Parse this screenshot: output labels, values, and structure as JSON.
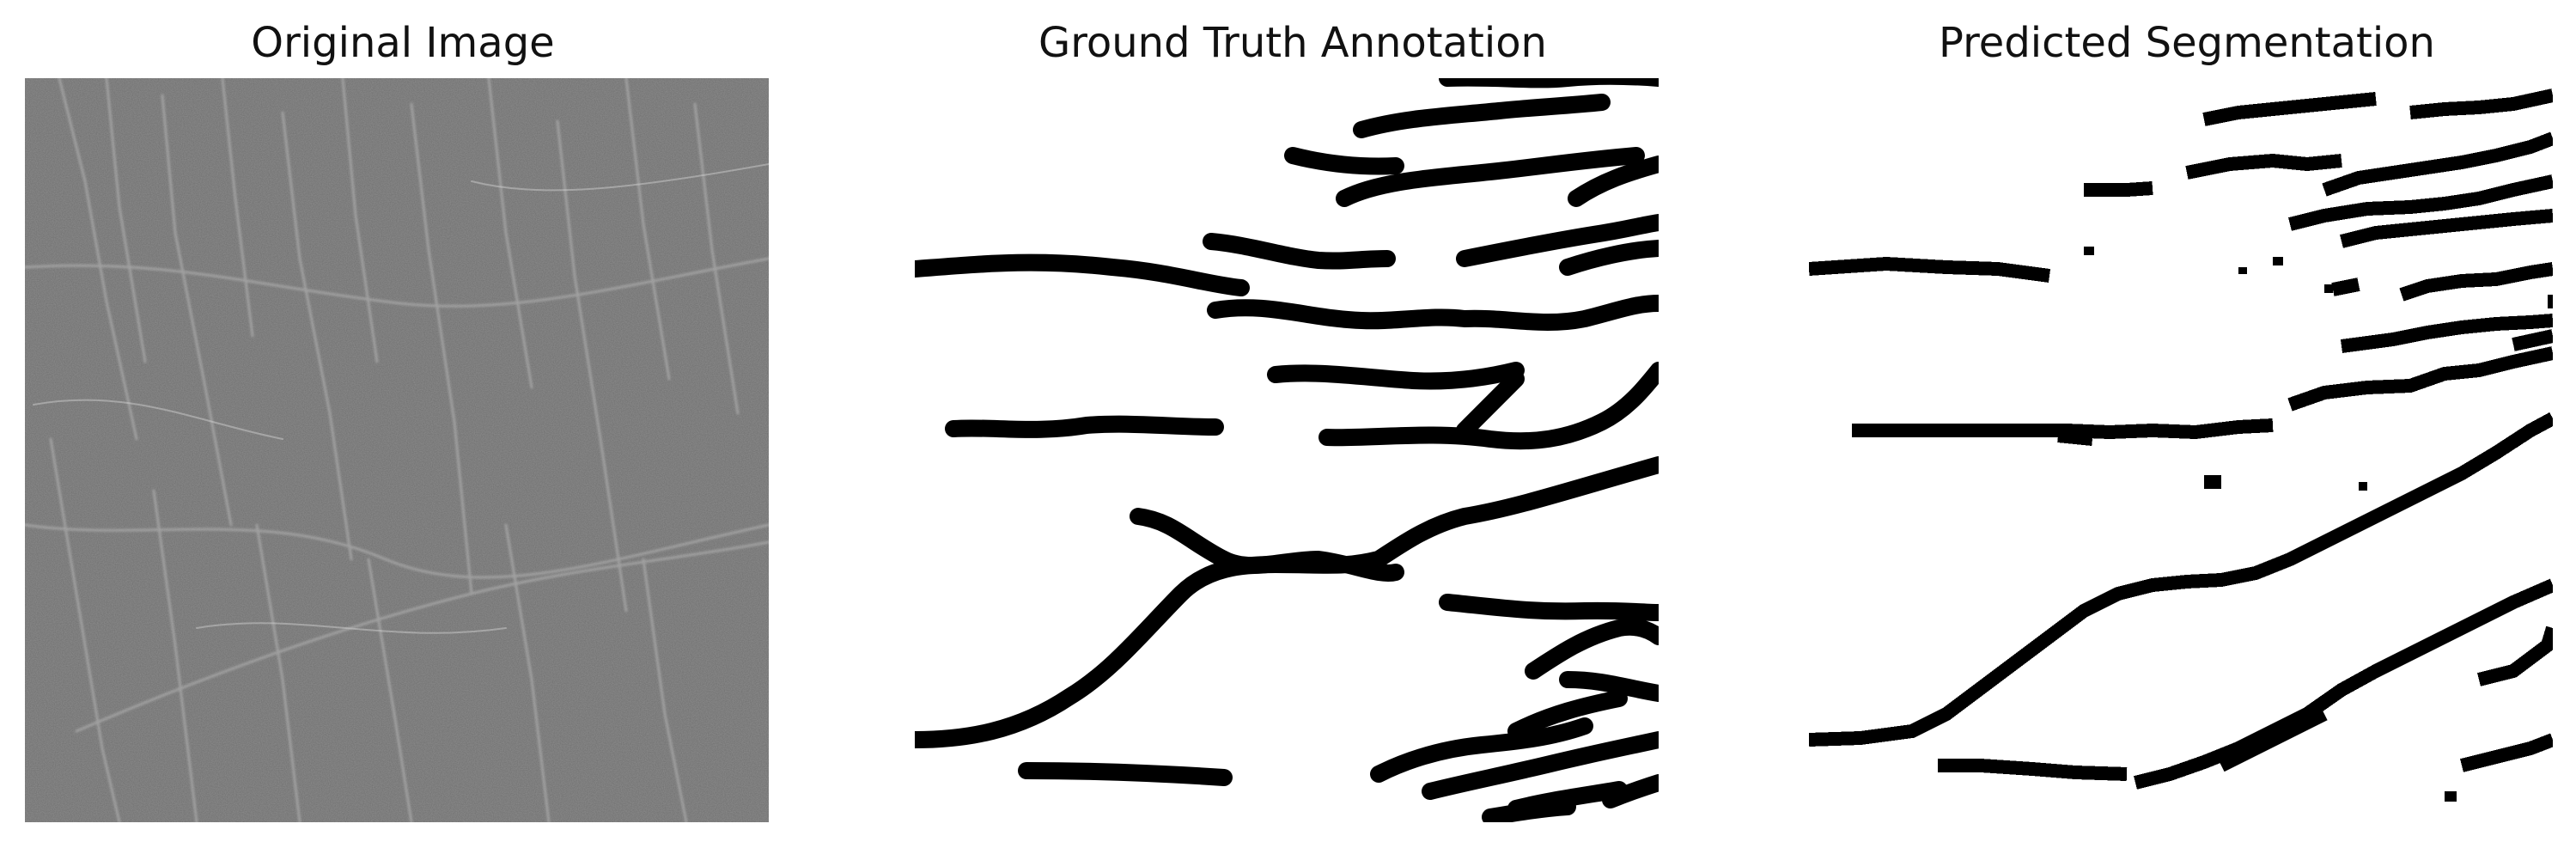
{
  "figure": {
    "panels": [
      {
        "title": "Original Image",
        "content": "grayscale-texture-photo"
      },
      {
        "title": "Ground Truth Annotation",
        "content": "binary-mask-thick-strokes"
      },
      {
        "title": "Predicted Segmentation",
        "content": "binary-mask-pixelated-strokes"
      }
    ],
    "colors": {
      "background": "#ffffff",
      "mask_foreground": "#000000",
      "mask_background": "#ffffff",
      "photo_base": "#6e6e6e"
    }
  }
}
